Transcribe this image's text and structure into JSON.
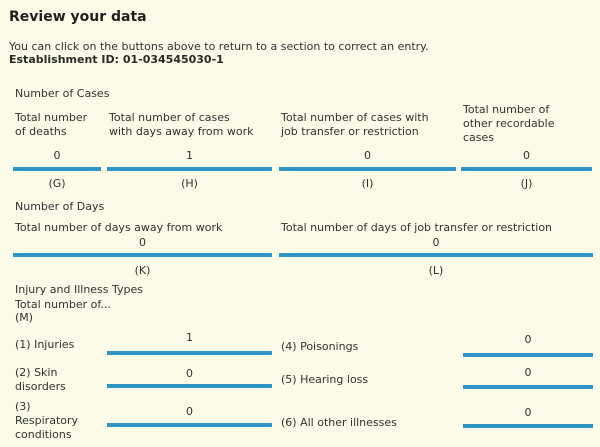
{
  "colors": {
    "background": "#fbfbe8",
    "field_underline": "#2e95c6",
    "text": "#333330"
  },
  "page": {
    "title": "Review your data",
    "intro": "You can click on the buttons above to return to a section to correct an entry.",
    "establishment": "Establishment ID: 01-034545030-1"
  },
  "cases": {
    "heading": "Number of Cases",
    "columns": [
      {
        "label": "Total number\nof deaths",
        "value": "0",
        "code": "(G)"
      },
      {
        "label": "Total number of cases\nwith days away from work",
        "value": "1",
        "code": "(H)"
      },
      {
        "label": "Total number of cases with\njob transfer or restriction",
        "value": "0",
        "code": "(I)"
      },
      {
        "label": "Total number of\nother recordable\ncases",
        "value": "0",
        "code": "(J)"
      }
    ]
  },
  "days": {
    "heading": "Number of Days",
    "columns": [
      {
        "label": "Total number of days away from work",
        "value": "0",
        "code": "(K)"
      },
      {
        "label": "Total number of days of job transfer or restriction",
        "value": "0",
        "code": "(L)"
      }
    ]
  },
  "injuries": {
    "heading": "Injury and Illness Types",
    "subheading": "Total number of...",
    "code": "(M)",
    "items": [
      {
        "label": "(1) Injuries",
        "value": "1"
      },
      {
        "label": "(2) Skin\ndisorders",
        "value": "0"
      },
      {
        "label": "(3)\nRespiratory\nconditions",
        "value": "0"
      },
      {
        "label": "(4) Poisonings",
        "value": "0"
      },
      {
        "label": "(5) Hearing loss",
        "value": "0"
      },
      {
        "label": "(6) All other illnesses",
        "value": "0"
      }
    ]
  }
}
